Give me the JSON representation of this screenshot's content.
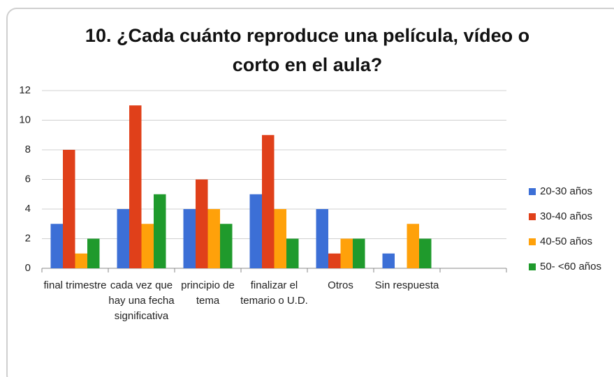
{
  "chart_data": {
    "type": "bar",
    "title": "10. ¿Cada cuánto reproduce una película, vídeo o corto en el aula?",
    "categories": [
      "final trimestre",
      "cada vez que hay una fecha significativa",
      "principio de tema",
      "finalizar el temario o U.D.",
      "Otros",
      "Sin respuesta",
      null
    ],
    "series": [
      {
        "name": "20-30 años",
        "color": "#3c6fd6",
        "values": [
          3,
          4,
          4,
          5,
          4,
          1,
          null
        ]
      },
      {
        "name": "30-40 años",
        "color": "#e0401a",
        "values": [
          8,
          11,
          6,
          9,
          1,
          0,
          null
        ]
      },
      {
        "name": "40-50 años",
        "color": "#ffa10a",
        "values": [
          1,
          3,
          4,
          4,
          2,
          3,
          null
        ]
      },
      {
        "name": "50- <60 años",
        "color": "#1f9a2c",
        "values": [
          2,
          5,
          3,
          2,
          2,
          2,
          null
        ]
      }
    ],
    "ylim": [
      0,
      12
    ],
    "yticks": [
      0,
      2,
      4,
      6,
      8,
      10,
      12
    ],
    "grid": true,
    "legend": "right"
  }
}
